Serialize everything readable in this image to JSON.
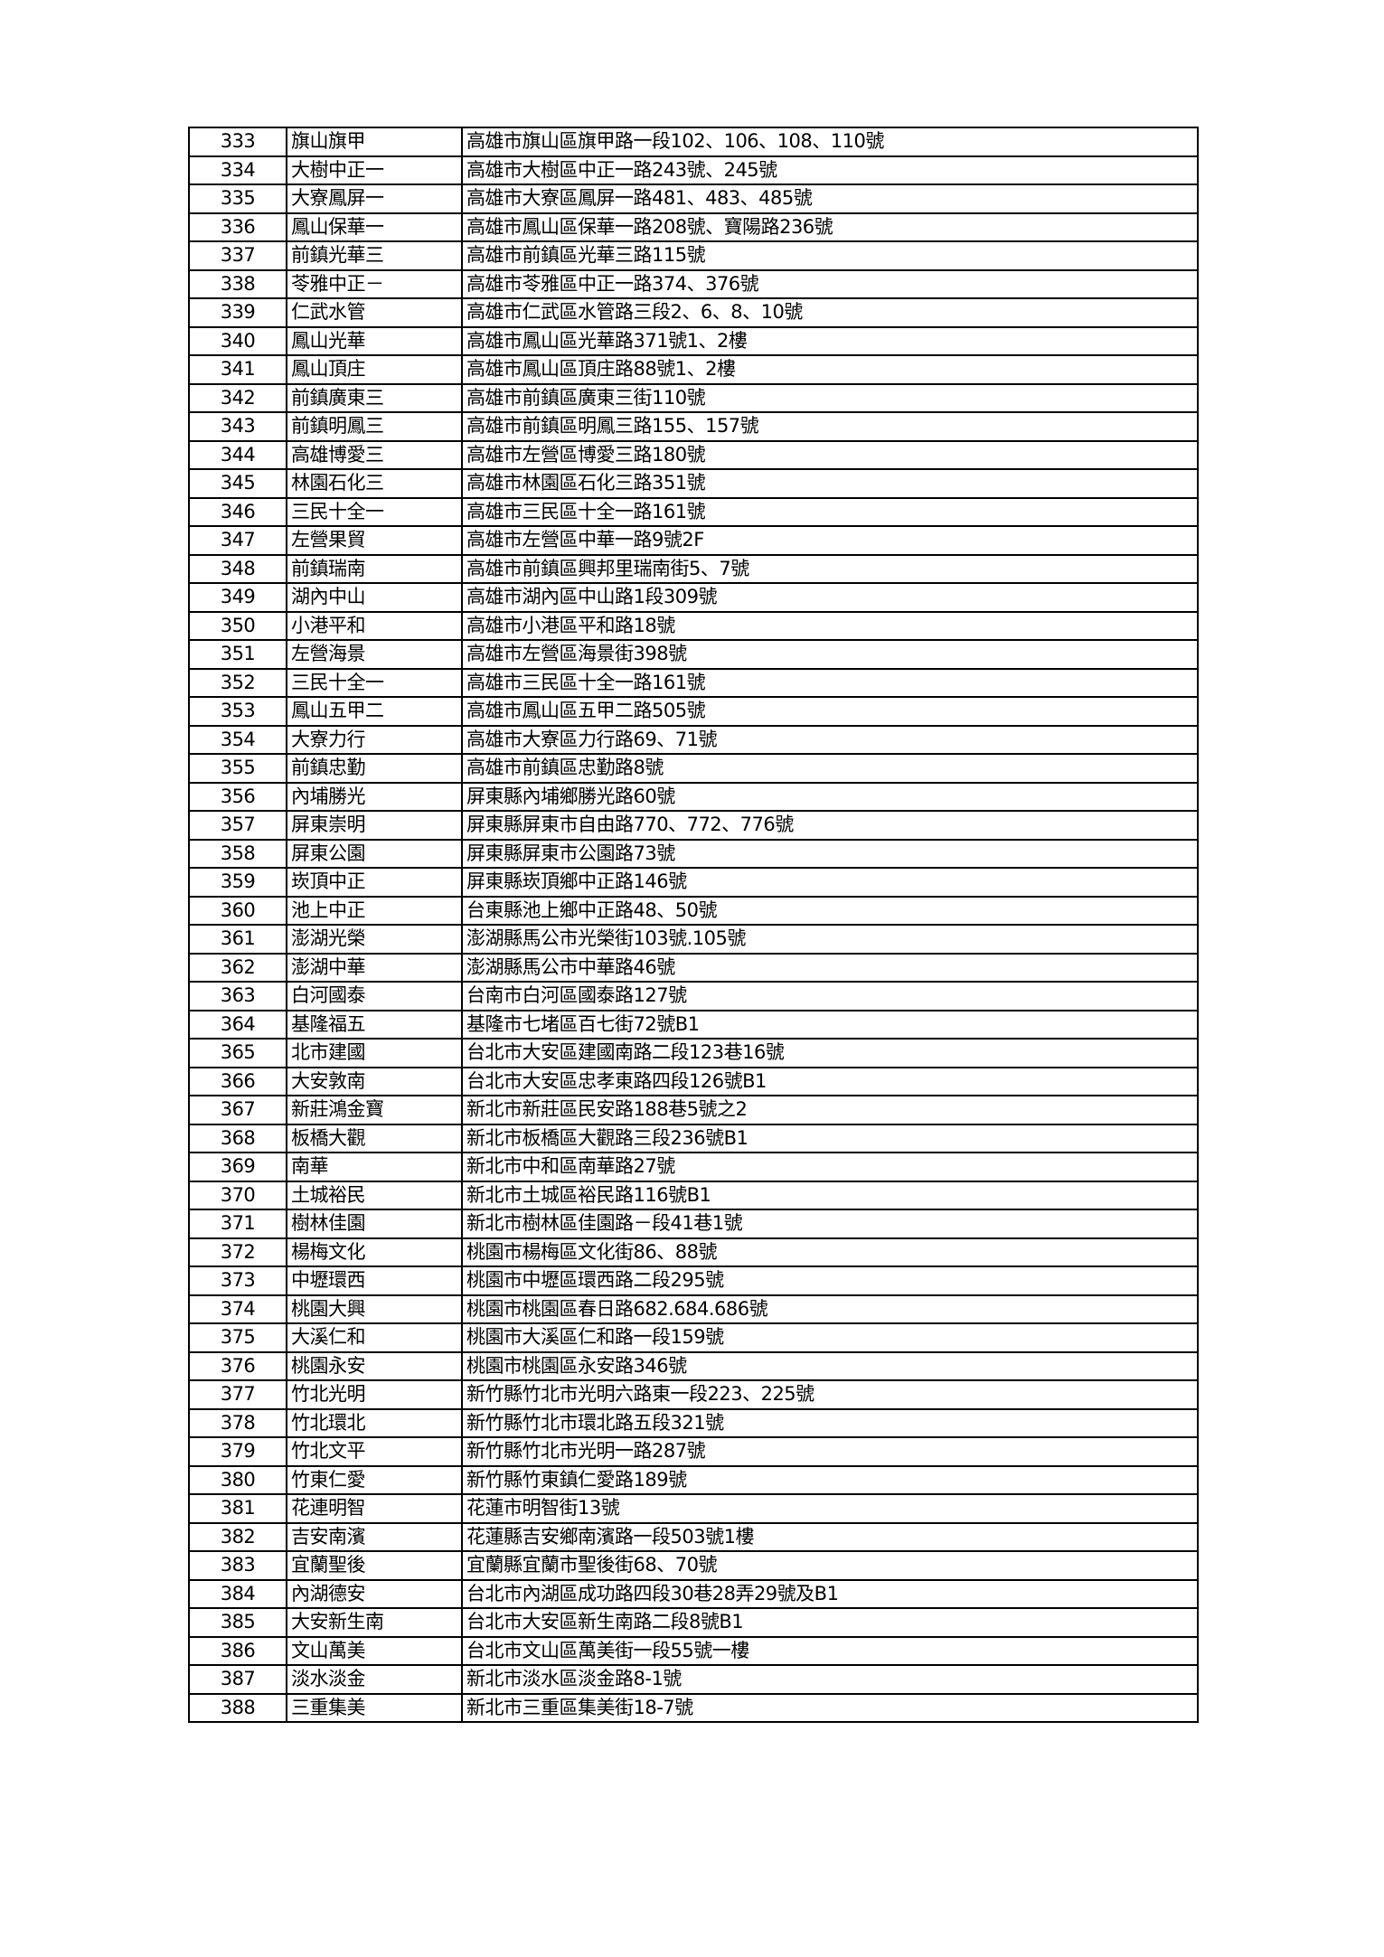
{
  "table": {
    "rows": [
      {
        "no": "333",
        "name": "旗山旗甲",
        "address": "高雄市旗山區旗甲路一段102、106、108、110號"
      },
      {
        "no": "334",
        "name": "大樹中正一",
        "address": "高雄市大樹區中正一路243號、245號"
      },
      {
        "no": "335",
        "name": "大寮鳳屏一",
        "address": "高雄市大寮區鳳屏一路481、483、485號"
      },
      {
        "no": "336",
        "name": "鳳山保華一",
        "address": "高雄市鳳山區保華一路208號、寶陽路236號"
      },
      {
        "no": "337",
        "name": "前鎮光華三",
        "address": "高雄市前鎮區光華三路115號"
      },
      {
        "no": "338",
        "name": "苓雅中正－",
        "address": "高雄市苓雅區中正一路374、376號"
      },
      {
        "no": "339",
        "name": "仁武水管",
        "address": "高雄市仁武區水管路三段2、6、8、10號"
      },
      {
        "no": "340",
        "name": "鳳山光華",
        "address": "高雄市鳳山區光華路371號1、2樓"
      },
      {
        "no": "341",
        "name": "鳳山頂庄",
        "address": "高雄市鳳山區頂庄路88號1、2樓"
      },
      {
        "no": "342",
        "name": "前鎮廣東三",
        "address": "高雄市前鎮區廣東三街110號"
      },
      {
        "no": "343",
        "name": "前鎮明鳳三",
        "address": "高雄市前鎮區明鳳三路155、157號"
      },
      {
        "no": "344",
        "name": "高雄博愛三",
        "address": "高雄市左營區博愛三路180號"
      },
      {
        "no": "345",
        "name": "林園石化三",
        "address": "高雄市林園區石化三路351號"
      },
      {
        "no": "346",
        "name": "三民十全一",
        "address": "高雄市三民區十全一路161號"
      },
      {
        "no": "347",
        "name": "左營果貿",
        "address": "高雄市左營區中華一路9號2F"
      },
      {
        "no": "348",
        "name": "前鎮瑞南",
        "address": "高雄市前鎮區興邦里瑞南街5、7號"
      },
      {
        "no": "349",
        "name": "湖內中山",
        "address": "高雄市湖內區中山路1段309號"
      },
      {
        "no": "350",
        "name": "小港平和",
        "address": "高雄市小港區平和路18號"
      },
      {
        "no": "351",
        "name": "左營海景",
        "address": "高雄市左營區海景街398號"
      },
      {
        "no": "352",
        "name": "三民十全一",
        "address": "高雄市三民區十全一路161號"
      },
      {
        "no": "353",
        "name": "鳳山五甲二",
        "address": "高雄市鳳山區五甲二路505號"
      },
      {
        "no": "354",
        "name": "大寮力行",
        "address": "高雄市大寮區力行路69、71號"
      },
      {
        "no": "355",
        "name": "前鎮忠勤",
        "address": "高雄市前鎮區忠勤路8號"
      },
      {
        "no": "356",
        "name": "內埔勝光",
        "address": "屏東縣內埔鄉勝光路60號"
      },
      {
        "no": "357",
        "name": "屏東崇明",
        "address": "屏東縣屏東市自由路770、772、776號"
      },
      {
        "no": "358",
        "name": "屏東公園",
        "address": "屏東縣屏東市公園路73號"
      },
      {
        "no": "359",
        "name": "崁頂中正",
        "address": "屏東縣崁頂鄉中正路146號"
      },
      {
        "no": "360",
        "name": "池上中正",
        "address": "台東縣池上鄉中正路48、50號"
      },
      {
        "no": "361",
        "name": "澎湖光榮",
        "address": "澎湖縣馬公市光榮街103號.105號"
      },
      {
        "no": "362",
        "name": "澎湖中華",
        "address": "澎湖縣馬公市中華路46號"
      },
      {
        "no": "363",
        "name": "白河國泰",
        "address": "台南市白河區國泰路127號"
      },
      {
        "no": "364",
        "name": "基隆福五",
        "address": "基隆市七堵區百七街72號B1"
      },
      {
        "no": "365",
        "name": "北市建國",
        "address": "台北市大安區建國南路二段123巷16號"
      },
      {
        "no": "366",
        "name": "大安敦南",
        "address": "台北市大安區忠孝東路四段126號B1"
      },
      {
        "no": "367",
        "name": "新莊鴻金寶",
        "address": "新北市新莊區民安路188巷5號之2"
      },
      {
        "no": "368",
        "name": "板橋大觀",
        "address": "新北市板橋區大觀路三段236號B1"
      },
      {
        "no": "369",
        "name": "南華",
        "address": "新北市中和區南華路27號"
      },
      {
        "no": "370",
        "name": "土城裕民",
        "address": "新北市土城區裕民路116號B1"
      },
      {
        "no": "371",
        "name": "樹林佳園",
        "address": "新北市樹林區佳園路－段41巷1號"
      },
      {
        "no": "372",
        "name": "楊梅文化",
        "address": "桃園市楊梅區文化街86、88號"
      },
      {
        "no": "373",
        "name": "中壢環西",
        "address": "桃園市中壢區環西路二段295號"
      },
      {
        "no": "374",
        "name": "桃園大興",
        "address": "桃園市桃園區春日路682.684.686號"
      },
      {
        "no": "375",
        "name": "大溪仁和",
        "address": "桃園市大溪區仁和路一段159號"
      },
      {
        "no": "376",
        "name": "桃園永安",
        "address": "桃園市桃園區永安路346號"
      },
      {
        "no": "377",
        "name": "竹北光明",
        "address": "新竹縣竹北市光明六路東一段223、225號"
      },
      {
        "no": "378",
        "name": "竹北環北",
        "address": "新竹縣竹北市環北路五段321號"
      },
      {
        "no": "379",
        "name": "竹北文平",
        "address": "新竹縣竹北市光明一路287號"
      },
      {
        "no": "380",
        "name": "竹東仁愛",
        "address": "新竹縣竹東鎮仁愛路189號"
      },
      {
        "no": "381",
        "name": "花連明智",
        "address": "花蓮市明智街13號"
      },
      {
        "no": "382",
        "name": "吉安南濱",
        "address": "花蓮縣吉安鄉南濱路一段503號1樓"
      },
      {
        "no": "383",
        "name": "宜蘭聖後",
        "address": "宜蘭縣宜蘭市聖後街68、70號"
      },
      {
        "no": "384",
        "name": "內湖德安",
        "address": "台北市內湖區成功路四段30巷28弄29號及B1"
      },
      {
        "no": "385",
        "name": "大安新生南",
        "address": "台北市大安區新生南路二段8號B1"
      },
      {
        "no": "386",
        "name": "文山萬美",
        "address": "台北市文山區萬美街一段55號一樓"
      },
      {
        "no": "387",
        "name": "淡水淡金",
        "address": "新北市淡水區淡金路8-1號"
      },
      {
        "no": "388",
        "name": "三重集美",
        "address": "新北市三重區集美街18-7號"
      }
    ]
  }
}
